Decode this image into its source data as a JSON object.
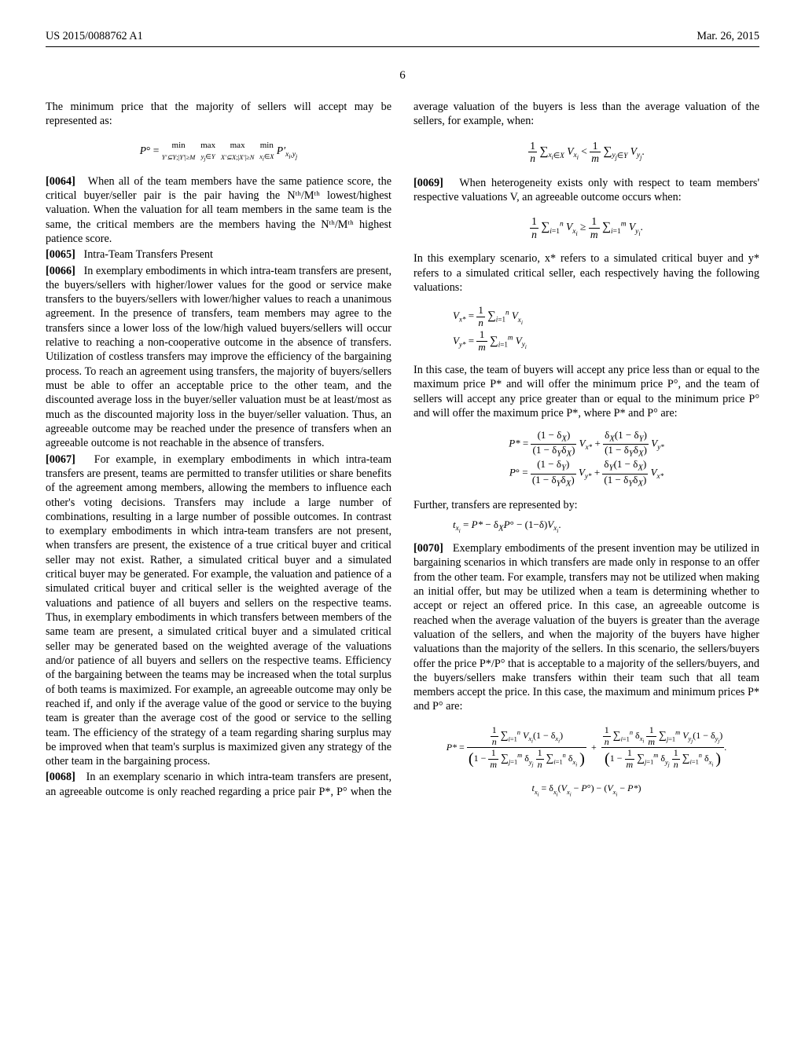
{
  "header": {
    "left": "US 2015/0088762 A1",
    "right": "Mar. 26, 2015"
  },
  "page_number": "6",
  "col1": {
    "p1": "The minimum price that the majority of sellers will accept may be represented as:",
    "eq1": "P° = min_{Y'⊆Y;|Y'|≥M}  max_{y_j∈Y}  max_{X'⊆X;|X'|≥N}  min_{x_i∈X} P'_{x_i,y_j}",
    "p2_num": "[0064]",
    "p2": "When all of the team members have the same patience score, the critical buyer/seller pair is the pair having the Nᵗʰ/Mᵗʰ lowest/highest valuation. When the valuation for all team members in the same team is the same, the critical members are the members having the Nᵗʰ/Mᵗʰ highest patience score.",
    "p3_num": "[0065]",
    "p3": "Intra-Team Transfers Present",
    "p4_num": "[0066]",
    "p4": "In exemplary embodiments in which intra-team transfers are present, the buyers/sellers with higher/lower values for the good or service make transfers to the buyers/sellers with lower/higher values to reach a unanimous agreement. In the presence of transfers, team members may agree to the transfers since a lower loss of the low/high valued buyers/sellers will occur relative to reaching a non-cooperative outcome in the absence of transfers. Utilization of costless transfers may improve the efficiency of the bargaining process. To reach an agreement using transfers, the majority of buyers/sellers must be able to offer an acceptable price to the other team, and the discounted average loss in the buyer/seller valuation must be at least/most as much as the discounted majority loss in the buyer/seller valuation. Thus, an agreeable outcome may be reached under the presence of transfers when an agreeable outcome is not reachable in the absence of transfers.",
    "p5_num": "[0067]",
    "p5": "For example, in exemplary embodiments in which intra-team transfers are present, teams are permitted to transfer utilities or share benefits of the agreement among members, allowing the members to influence each other's voting decisions. Transfers may include a large number of combinations, resulting in a large number of possible outcomes. In contrast to exemplary embodiments in which intra-team transfers are not present, when transfers are present, the existence of a true critical buyer and critical seller may not exist. Rather, a simulated critical buyer and a simulated critical buyer may be generated. For example, the valuation and patience of a simulated critical buyer and critical seller is the weighted average of the valuations and patience of all buyers and sellers on the respective teams. Thus, in exemplary embodiments in which transfers between members of the same team are present, a simulated critical buyer and a simulated critical seller may be generated based on the weighted average of the valuations and/or patience of all buyers and sellers on the respective teams. Efficiency of the bargaining between the teams may be increased when the total surplus of both teams is maximized. For example, an agreeable outcome may only be reached if, and only if the average value of the good or service to the buying team is greater than the average cost of the good or service to the selling team. The efficiency of the strategy of a team regarding sharing surplus may be improved when that team's surplus is maximized given any strategy of the other team in the bargaining process.",
    "p6_num": "[0068]",
    "p6": "In an exemplary scenario in which intra-team transfers are present, an agreeable outcome is only reached regarding a price pair P*, P° when the average valuation of the buyers is less than the average valuation of the sellers, for example, when:"
  },
  "col2": {
    "eq1_html": "(1/n) Σ_{x_i∈X} V_{x_i} < (1/m) Σ_{y_j∈Y} V_{y_j}.",
    "p1_num": "[0069]",
    "p1": "When heterogeneity exists only with respect to team members' respective valuations V, an agreeable outcome occurs when:",
    "eq2_html": "(1/n) Σ_{i=1}^{n} V_{x_i} ≥ (1/m) Σ_{i=1}^{m} V_{y_i}.",
    "p2": "In this exemplary scenario, x* refers to a simulated critical buyer and y* refers to a simulated critical seller, each respectively having the following valuations:",
    "eq3_a": "V_{x*} = (1/n) Σ_{i=1}^{n} V_{x_i}",
    "eq3_b": "V_{y*} = (1/m) Σ_{i=1}^{m} V_{y_i}",
    "p3": "In this case, the team of buyers will accept any price less than or equal to the maximum price P* and will offer the minimum price P°, and the team of sellers will accept any price greater than or equal to the minimum price P° and will offer the maximum price P*, where P* and P° are:",
    "eq4_a": "P* = ((1−δ_X)/(1−δ_Yδ_X)) V_{x*} + (δ_X(1−δ_Y)/(1−δ_Yδ_X)) V_{y*}",
    "eq4_b": "P° = ((1−δ_Y)/(1−δ_Yδ_X)) V_{y*} + (δ_Y(1−δ_X)/(1−δ_Yδ_X)) V_{x*}",
    "p4": "Further, transfers are represented by:",
    "eq5": "t_{x_i} = P* − δ_X P° − (1−δ) V_{x_i}.",
    "p5_num": "[0070]",
    "p5": "Exemplary embodiments of the present invention may be utilized in bargaining scenarios in which transfers are made only in response to an offer from the other team. For example, transfers may not be utilized when making an initial offer, but may be utilized when a team is determining whether to accept or reject an offered price. In this case, an agreeable outcome is reached when the average valuation of the buyers is greater than the average valuation of the sellers, and when the majority of the buyers have higher valuations than the majority of the sellers. In this scenario, the sellers/buyers offer the price P*/P° that is acceptable to a majority of the sellers/buyers, and the buyers/sellers make transfers within their team such that all team members accept the price. In this case, the maximum and minimum prices P* and P° are:",
    "eq6_a": "P* = [ (1/n) Σ V_{x_i}(1−δ_{x_i}) ] / [ 1 − (1/m) Σ δ_{y_j} (1/n) Σ δ_{x_i} ] + [ (1/n) Σ δ_{x_i} (1/m) Σ V_{y_j}(1−δ_{y_j}) ] / [ 1 − (1/m) Σ δ_{y_j} (1/n) Σ δ_{x_i} ] .",
    "eq6_b": "t_{x_i} = δ_{x_i}(V_{x_i} − P°) − (V_{x_i} − P*)"
  }
}
